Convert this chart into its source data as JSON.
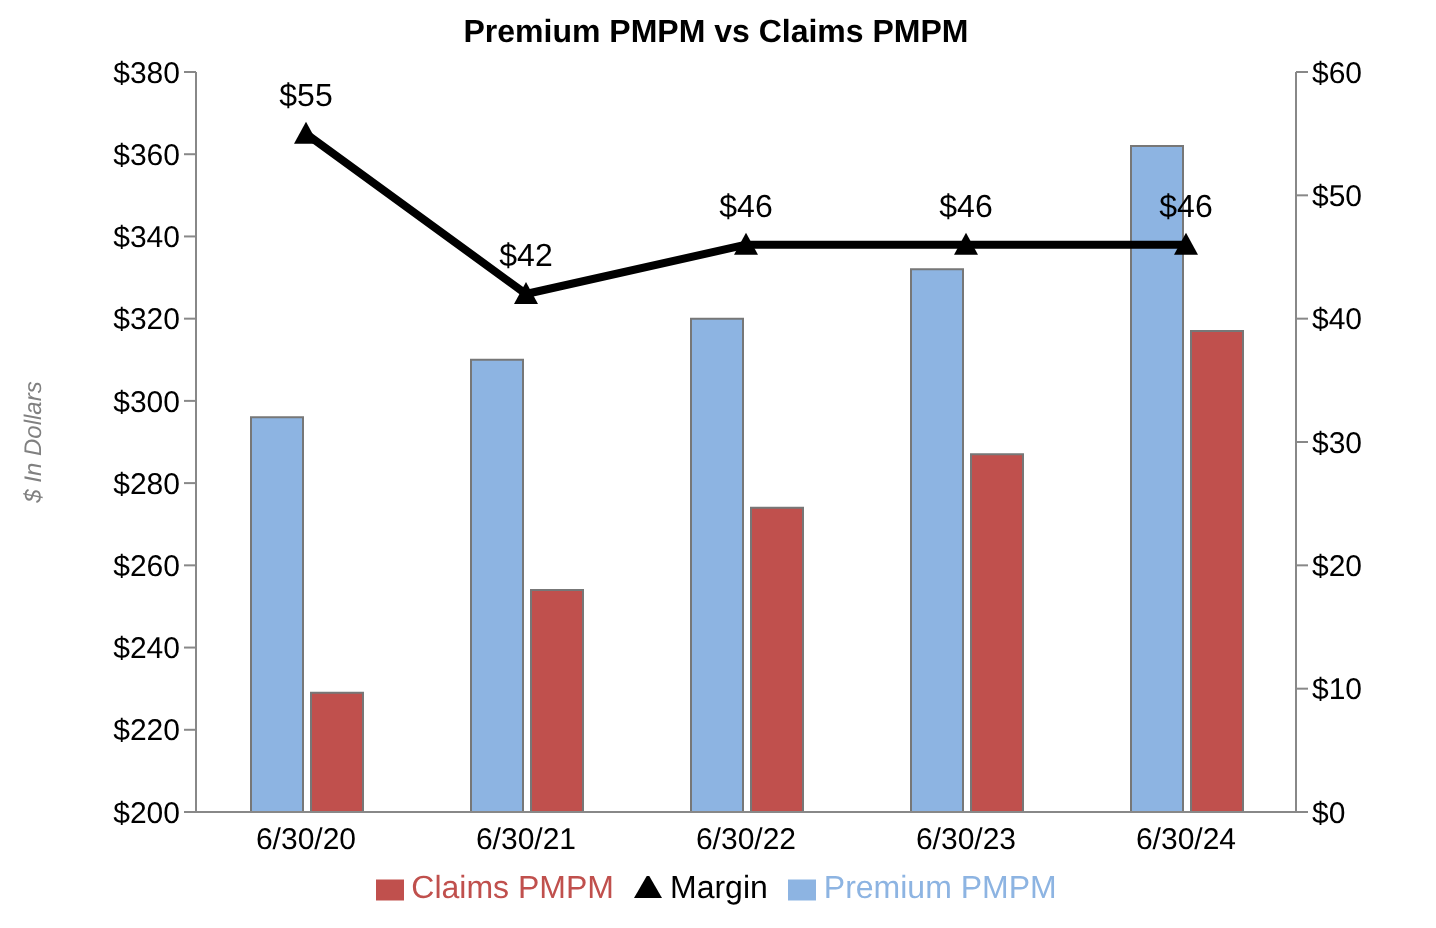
{
  "chart_data": {
    "type": "bar",
    "title": "Premium PMPM vs Claims PMPM",
    "ylabel": "$ In Dollars",
    "categories": [
      "6/30/20",
      "6/30/21",
      "6/30/22",
      "6/30/23",
      "6/30/24"
    ],
    "series": [
      {
        "name": "Premium PMPM",
        "color": "#8db4e2",
        "values": [
          296,
          310,
          320,
          332,
          362
        ]
      },
      {
        "name": "Claims PMPM",
        "color": "#c0504d",
        "values": [
          229,
          254,
          274,
          287,
          317
        ]
      },
      {
        "name": "Margin",
        "type": "line",
        "axis": "y2",
        "color": "#000000",
        "values": [
          55,
          42,
          46,
          46,
          46
        ],
        "value_labels": [
          "$55",
          "$42",
          "$46",
          "$46",
          "$46"
        ],
        "marker": "triangle",
        "line_style": "solid"
      }
    ],
    "ylim": [
      200,
      380
    ],
    "yticks": [
      {
        "value": 200,
        "label": "$200"
      },
      {
        "value": 220,
        "label": "$220"
      },
      {
        "value": 240,
        "label": "$240"
      },
      {
        "value": 260,
        "label": "$260"
      },
      {
        "value": 280,
        "label": "$280"
      },
      {
        "value": 300,
        "label": "$300"
      },
      {
        "value": 320,
        "label": "$320"
      },
      {
        "value": 340,
        "label": "$340"
      },
      {
        "value": 360,
        "label": "$360"
      },
      {
        "value": 380,
        "label": "$380"
      }
    ],
    "y2lim": [
      0,
      60
    ],
    "y2ticks": [
      {
        "value": 0,
        "label": "$0"
      },
      {
        "value": 10,
        "label": "$10"
      },
      {
        "value": 20,
        "label": "$20"
      },
      {
        "value": 30,
        "label": "$30"
      },
      {
        "value": 40,
        "label": "$40"
      },
      {
        "value": 50,
        "label": "$50"
      },
      {
        "value": 60,
        "label": "$60"
      }
    ],
    "grid": false,
    "legend": "bottom"
  }
}
